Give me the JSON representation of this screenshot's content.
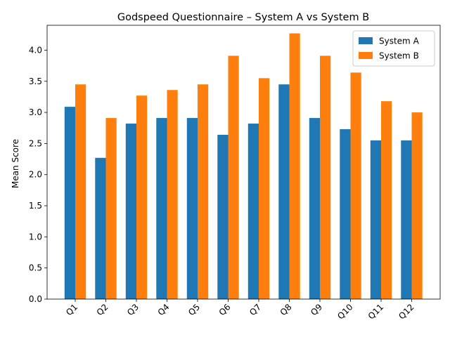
{
  "chart_data": {
    "type": "bar",
    "title": "Godspeed Questionnaire – System A vs System B",
    "xlabel": "",
    "ylabel": "Mean Score",
    "categories": [
      "Q1",
      "Q2",
      "Q3",
      "Q4",
      "Q5",
      "Q6",
      "Q7",
      "Q8",
      "Q9",
      "Q10",
      "Q11",
      "Q12"
    ],
    "series": [
      {
        "name": "System A",
        "color": "#1f77b4",
        "values": [
          3.09,
          2.27,
          2.82,
          2.91,
          2.91,
          2.64,
          2.82,
          3.45,
          2.91,
          2.73,
          2.55,
          2.55
        ]
      },
      {
        "name": "System B",
        "color": "#ff7f0e",
        "values": [
          3.45,
          2.91,
          3.27,
          3.36,
          3.45,
          3.91,
          3.55,
          4.27,
          3.91,
          3.64,
          3.18,
          3.0
        ]
      }
    ],
    "ylim": [
      0,
      4.4
    ],
    "yticks": [
      "0.0",
      "0.5",
      "1.0",
      "1.5",
      "2.0",
      "2.5",
      "3.0",
      "3.5",
      "4.0"
    ],
    "grid": false,
    "legend_position": "top-right",
    "xtick_rotation": "45 degrees"
  }
}
